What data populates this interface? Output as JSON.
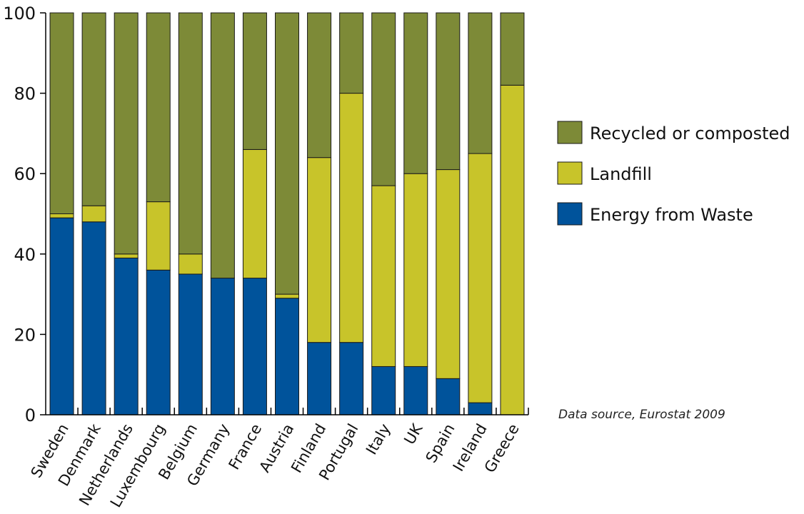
{
  "chart_data": {
    "type": "bar",
    "stacked": true,
    "categories": [
      "Sweden",
      "Denmark",
      "Netherlands",
      "Luxembourg",
      "Belgium",
      "Germany",
      "France",
      "Austria",
      "Finland",
      "Portugal",
      "Italy",
      "UK",
      "Spain",
      "Ireland",
      "Greece"
    ],
    "series": [
      {
        "name": "Energy from Waste",
        "color": "#00539b",
        "values": [
          49,
          48,
          39,
          36,
          35,
          34,
          34,
          29,
          18,
          18,
          12,
          12,
          9,
          3,
          0
        ]
      },
      {
        "name": "Landfill",
        "color": "#c8c42a",
        "values": [
          1,
          4,
          1,
          17,
          5,
          0,
          32,
          1,
          46,
          62,
          45,
          48,
          52,
          62,
          82
        ]
      },
      {
        "name": "Recycled or composted",
        "color": "#7d8a37",
        "values": [
          50,
          48,
          60,
          47,
          60,
          66,
          34,
          70,
          36,
          20,
          43,
          40,
          39,
          35,
          18
        ]
      }
    ],
    "ylim": [
      0,
      100
    ],
    "yticks": [
      "0",
      "20",
      "40",
      "60",
      "80",
      "100"
    ],
    "legend_position": "right",
    "legend_order": [
      "Recycled or composted",
      "Landfill",
      "Energy from Waste"
    ],
    "grid": false,
    "annotation": "Data source, Eurostat 2009"
  }
}
